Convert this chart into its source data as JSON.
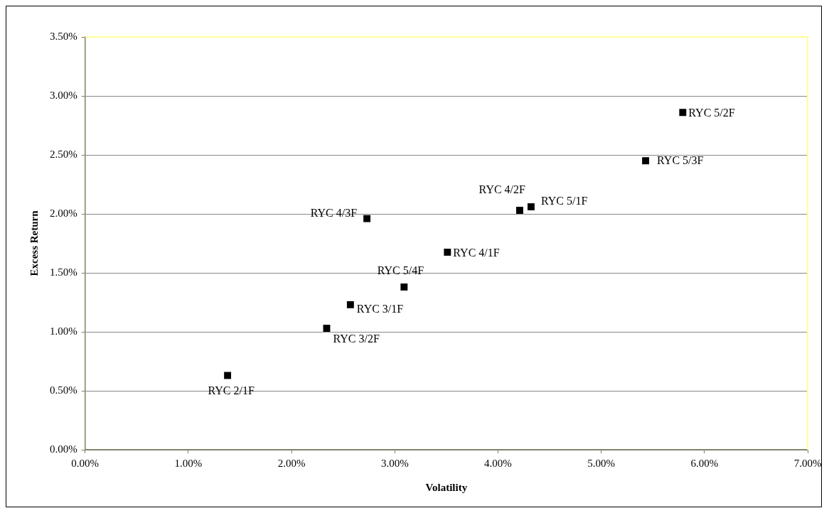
{
  "chart_data": {
    "type": "scatter",
    "xlabel": "Volatility",
    "ylabel": "Excess Return",
    "series": [
      {
        "color": "#000000",
        "marker": "square",
        "x": [
          1.38,
          2.34,
          2.57,
          3.09,
          2.73,
          3.51,
          4.21,
          4.32,
          5.43,
          5.79
        ],
        "values": [
          0.63,
          1.03,
          1.23,
          1.38,
          1.96,
          1.675,
          2.03,
          2.06,
          2.45,
          2.86
        ]
      }
    ],
    "annotations": [
      {
        "text": "RYC 2/1F",
        "x": 1.38,
        "y": 0.63
      },
      {
        "text": "RYC 3/2F",
        "x": 2.34,
        "y": 1.03
      },
      {
        "text": "RYC 3/1F",
        "x": 2.57,
        "y": 1.23
      },
      {
        "text": "RYC 5/4F",
        "x": 3.09,
        "y": 1.38
      },
      {
        "text": "RYC 4/3F",
        "x": 2.73,
        "y": 1.96
      },
      {
        "text": "RYC 4/1F",
        "x": 3.51,
        "y": 1.675
      },
      {
        "text": "RYC 4/2F",
        "x": 4.21,
        "y": 2.03
      },
      {
        "text": "RYC 5/1F",
        "x": 4.32,
        "y": 2.06
      },
      {
        "text": "RYC 5/3F",
        "x": 5.43,
        "y": 2.45
      },
      {
        "text": "RYC 5/2F",
        "x": 5.79,
        "y": 2.86
      }
    ],
    "xlim": [
      0,
      7
    ],
    "xticks": [
      {
        "value": 0,
        "label": "0.00%"
      },
      {
        "value": 1,
        "label": "1.00%"
      },
      {
        "value": 2,
        "label": "2.00%"
      },
      {
        "value": 3,
        "label": "3.00%"
      },
      {
        "value": 4,
        "label": "4.00%"
      },
      {
        "value": 5,
        "label": "5.00%"
      },
      {
        "value": 6,
        "label": "6.00%"
      },
      {
        "value": 7,
        "label": "7.00%"
      }
    ],
    "ylim": [
      0,
      3.5
    ],
    "yticks": [
      {
        "value": 0,
        "label": "0.00%"
      },
      {
        "value": 0.5,
        "label": "0.50%"
      },
      {
        "value": 1,
        "label": "1.00%"
      },
      {
        "value": 1.5,
        "label": "1.50%"
      },
      {
        "value": 2,
        "label": "2.00%"
      },
      {
        "value": 2.5,
        "label": "2.50%"
      },
      {
        "value": 3,
        "label": "3.00%"
      },
      {
        "value": 3.5,
        "label": "3.50%"
      }
    ],
    "grid": "y",
    "legend": false
  }
}
